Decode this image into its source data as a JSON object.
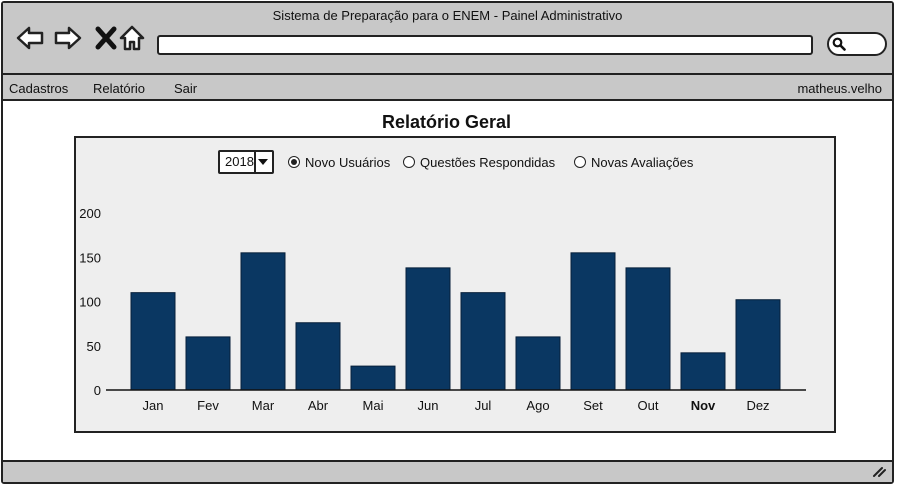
{
  "window": {
    "title": "Sistema de Preparação para o ENEM - Painel Administrativo"
  },
  "menu": {
    "items": [
      "Cadastros",
      "Relatório",
      "Sair"
    ],
    "user": "matheus.velho"
  },
  "page": {
    "title": "Relatório Geral"
  },
  "filters": {
    "year": "2018",
    "options": [
      "Novo Usuários",
      "Questões Respondidas",
      "Novas Avaliações"
    ],
    "selected": 0
  },
  "colors": {
    "bar": "#0a3762",
    "chrome": "#c8c8c8",
    "panel": "#eeeeee"
  },
  "chart_data": {
    "type": "bar",
    "categories": [
      "Jan",
      "Fev",
      "Mar",
      "Abr",
      "Mai",
      "Jun",
      "Jul",
      "Ago",
      "Set",
      "Out",
      "Nov",
      "Dez"
    ],
    "values": [
      110,
      60,
      155,
      76,
      27,
      138,
      110,
      60,
      155,
      138,
      42,
      102
    ],
    "yticks": [
      0,
      50,
      100,
      150,
      200
    ],
    "ylim": [
      0,
      200
    ],
    "grid": false,
    "highlight_category": "Nov"
  }
}
